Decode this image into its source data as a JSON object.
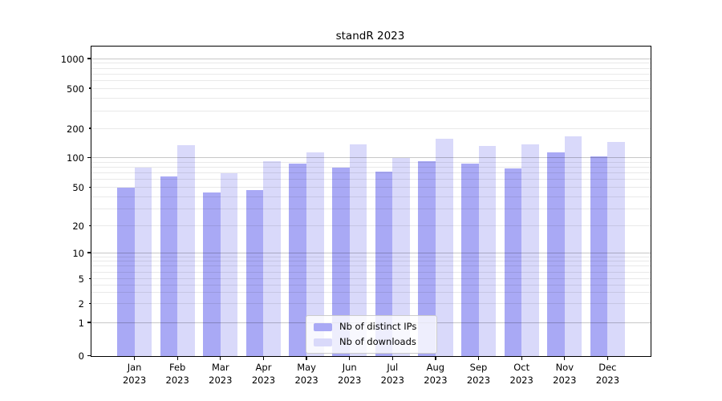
{
  "chart_data": {
    "type": "bar",
    "title": "standR 2023",
    "categories": [
      "Jan\n2023",
      "Feb\n2023",
      "Mar\n2023",
      "Apr\n2023",
      "May\n2023",
      "Jun\n2023",
      "Jul\n2023",
      "Aug\n2023",
      "Sep\n2023",
      "Oct\n2023",
      "Nov\n2023",
      "Dec\n2023"
    ],
    "series": [
      {
        "name": "Nb of distinct IPs",
        "color": "#a9a9f5",
        "values": [
          50,
          65,
          45,
          47,
          89,
          81,
          73,
          94,
          89,
          79,
          114,
          104
        ]
      },
      {
        "name": "Nb of downloads",
        "color": "#d9d9fa",
        "values": [
          81,
          136,
          70,
          94,
          114,
          140,
          100,
          160,
          135,
          140,
          168,
          146
        ]
      }
    ],
    "xlabel": "",
    "ylabel": "",
    "yscale": "symlog",
    "yticks": [
      0,
      1,
      2,
      5,
      10,
      20,
      50,
      100,
      200,
      500,
      1000
    ],
    "ylim": [
      0,
      1400
    ],
    "grid": "horizontal, log minor gridlines on",
    "legend_position": "bottom-center inside plot"
  },
  "colors": {
    "background": "#ffffff",
    "axis": "#000000",
    "bar_distinct_ips": "#a9a9f5",
    "bar_downloads": "#d9d9fa"
  }
}
